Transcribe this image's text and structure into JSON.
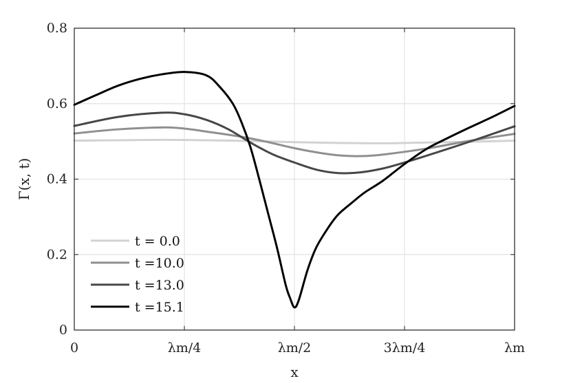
{
  "chart_data": {
    "type": "line",
    "xlabel": "x",
    "ylabel": "Γ(x, t)",
    "xlim": [
      0,
      1
    ],
    "ylim": [
      0,
      0.8
    ],
    "grid": true,
    "legend_position": "bottom-left",
    "x_ticks": [
      {
        "value": 0,
        "label": "0"
      },
      {
        "value": 0.25,
        "label": "λm/4"
      },
      {
        "value": 0.5,
        "label": "λm/2"
      },
      {
        "value": 0.75,
        "label": "3λm/4"
      },
      {
        "value": 1,
        "label": "λm"
      }
    ],
    "y_ticks": [
      {
        "value": 0,
        "label": "0"
      },
      {
        "value": 0.2,
        "label": "0.2"
      },
      {
        "value": 0.4,
        "label": "0.4"
      },
      {
        "value": 0.6,
        "label": "0.6"
      },
      {
        "value": 0.8,
        "label": "0.8"
      }
    ],
    "series": [
      {
        "name": "t = 0.0",
        "color": "#d2d2d2",
        "points": [
          [
            0,
            0.502
          ],
          [
            0.1,
            0.503
          ],
          [
            0.2,
            0.504
          ],
          [
            0.3,
            0.503
          ],
          [
            0.4,
            0.501
          ],
          [
            0.5,
            0.498
          ],
          [
            0.6,
            0.496
          ],
          [
            0.7,
            0.495
          ],
          [
            0.8,
            0.497
          ],
          [
            0.9,
            0.499
          ],
          [
            1,
            0.502
          ]
        ]
      },
      {
        "name": "t =10.0",
        "color": "#8f8f8f",
        "points": [
          [
            0,
            0.521
          ],
          [
            0.1,
            0.532
          ],
          [
            0.2,
            0.537
          ],
          [
            0.25,
            0.534
          ],
          [
            0.3,
            0.526
          ],
          [
            0.4,
            0.508
          ],
          [
            0.5,
            0.482
          ],
          [
            0.55,
            0.471
          ],
          [
            0.6,
            0.463
          ],
          [
            0.65,
            0.461
          ],
          [
            0.7,
            0.465
          ],
          [
            0.8,
            0.481
          ],
          [
            0.9,
            0.502
          ],
          [
            1,
            0.52
          ]
        ]
      },
      {
        "name": "t =13.0",
        "color": "#474747",
        "points": [
          [
            0,
            0.541
          ],
          [
            0.1,
            0.565
          ],
          [
            0.2,
            0.576
          ],
          [
            0.25,
            0.572
          ],
          [
            0.3,
            0.557
          ],
          [
            0.35,
            0.532
          ],
          [
            0.4,
            0.497
          ],
          [
            0.45,
            0.466
          ],
          [
            0.5,
            0.444
          ],
          [
            0.55,
            0.425
          ],
          [
            0.6,
            0.416
          ],
          [
            0.65,
            0.418
          ],
          [
            0.7,
            0.428
          ],
          [
            0.75,
            0.444
          ],
          [
            0.8,
            0.462
          ],
          [
            0.9,
            0.5
          ],
          [
            1,
            0.54
          ]
        ]
      },
      {
        "name": "t =15.1",
        "color": "#000000",
        "points": [
          [
            0,
            0.597
          ],
          [
            0.05,
            0.623
          ],
          [
            0.1,
            0.648
          ],
          [
            0.15,
            0.666
          ],
          [
            0.2,
            0.678
          ],
          [
            0.25,
            0.684
          ],
          [
            0.3,
            0.675
          ],
          [
            0.33,
            0.645
          ],
          [
            0.36,
            0.6
          ],
          [
            0.38,
            0.55
          ],
          [
            0.4,
            0.485
          ],
          [
            0.42,
            0.4
          ],
          [
            0.44,
            0.31
          ],
          [
            0.46,
            0.22
          ],
          [
            0.48,
            0.12
          ],
          [
            0.49,
            0.085
          ],
          [
            0.5,
            0.06
          ],
          [
            0.51,
            0.08
          ],
          [
            0.53,
            0.16
          ],
          [
            0.55,
            0.22
          ],
          [
            0.58,
            0.277
          ],
          [
            0.6,
            0.307
          ],
          [
            0.63,
            0.337
          ],
          [
            0.66,
            0.365
          ],
          [
            0.7,
            0.395
          ],
          [
            0.75,
            0.44
          ],
          [
            0.8,
            0.48
          ],
          [
            0.85,
            0.51
          ],
          [
            0.9,
            0.538
          ],
          [
            0.95,
            0.565
          ],
          [
            1,
            0.594
          ]
        ]
      }
    ]
  }
}
